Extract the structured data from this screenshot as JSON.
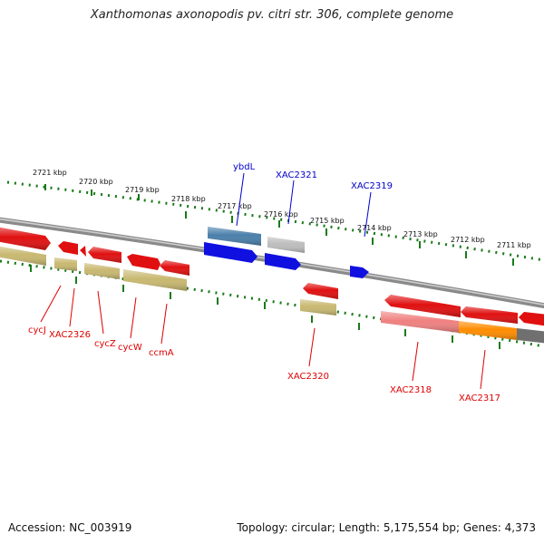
{
  "title": "Xanthomonas axonopodis pv. citri str. 306, complete genome",
  "footer": {
    "accession": "Accession: NC_003919",
    "topology": "Topology: circular; Length: 5,175,554 bp; Genes: 4,373"
  },
  "colors": {
    "red_gene": "#e01010",
    "olive_gene": "#c8b870",
    "blue_gene": "#1010e0",
    "steel_gene": "#4a7faa",
    "gray_gene": "#bdbdbd",
    "pink_gene": "#f08080",
    "orange_gene": "#ff8c00",
    "dark_gray_gene": "#707070",
    "genome_line": "#8a8a8a",
    "tick_green": "#1a7a1a",
    "label_red": "#dd0000",
    "label_blue": "#0000cc"
  },
  "scale_labels": [
    "2721 kbp",
    "2720 kbp",
    "2719 kbp",
    "2718 kbp",
    "2717 kbp",
    "2716 kbp",
    "2715 kbp",
    "2714 kbp",
    "2713 kbp",
    "2712 kbp",
    "2711 kbp"
  ],
  "top_labels": [
    "ybdL",
    "XAC2321",
    "XAC2319"
  ],
  "bottom_labels": [
    "cycJ",
    "XAC2326",
    "cycZ",
    "cycW",
    "ccmA",
    "XAC2320",
    "XAC2318",
    "XAC2317"
  ]
}
